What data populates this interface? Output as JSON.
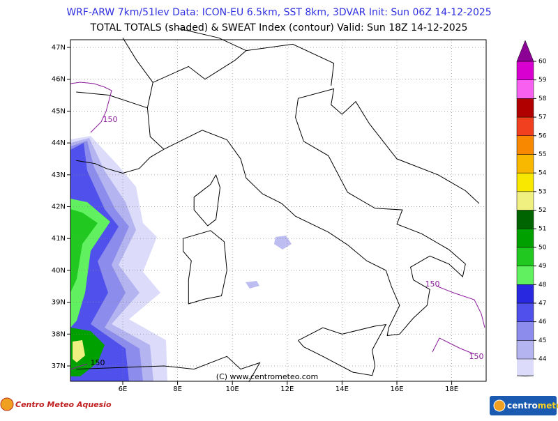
{
  "header": {
    "line1": "WRF-ARW 7km/51lev  Data: ICON-EU 6.5km, SST 8km, 3DVAR  Init: Sun 06Z 14-12-2025",
    "line2": "TOTAL TOTALS (shaded) & SWEAT Index (contour)  Valid: Sun 18Z 14-12-2025"
  },
  "map": {
    "lat_labels": [
      "47N",
      "46N",
      "45N",
      "44N",
      "43N",
      "42N",
      "41N",
      "40N",
      "39N",
      "38N",
      "37N"
    ],
    "lon_labels": [
      "6E",
      "8E",
      "10E",
      "12E",
      "14E",
      "16E",
      "18E"
    ],
    "contour_labels": [
      "150",
      "150",
      "150",
      "150"
    ],
    "copyright": "(C) www.centrometeo.com"
  },
  "colorbar": {
    "levels": [
      44,
      45,
      46,
      47,
      48,
      49,
      50,
      51,
      52,
      53,
      54,
      55,
      56,
      57,
      58,
      59,
      60
    ],
    "colors": [
      "#dcdcfa",
      "#b4b4f0",
      "#8c8cec",
      "#5050ec",
      "#2828e0",
      "#60f060",
      "#20c820",
      "#00a000",
      "#006400",
      "#f0f080",
      "#f8e800",
      "#f8b800",
      "#f88800",
      "#f04020",
      "#b00000",
      "#f860f0",
      "#d800d0",
      "#8c0096"
    ]
  },
  "footer": {
    "left_logo": "Centro Meteo Aquesio",
    "right_logo": [
      "centro",
      "meteo"
    ]
  }
}
